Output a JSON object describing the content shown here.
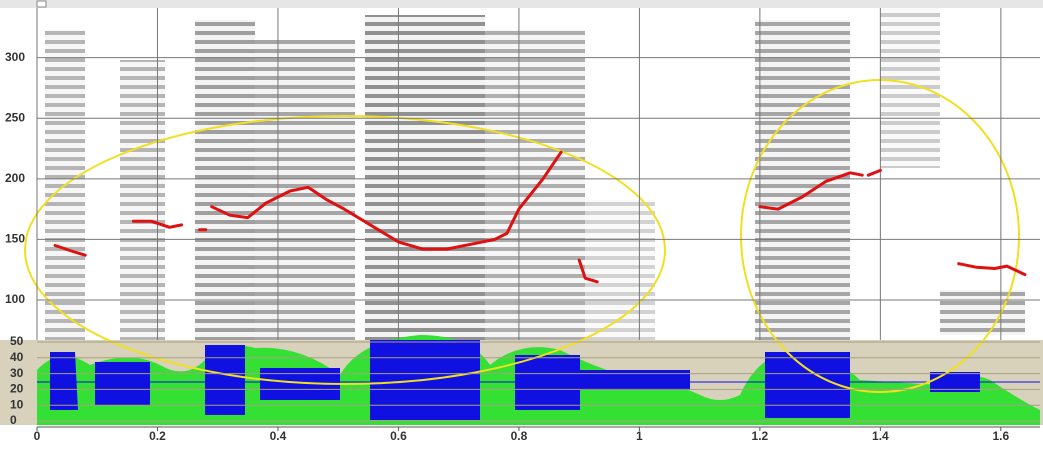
{
  "chart_data": {
    "type": "line",
    "x": [
      0.03,
      0.06,
      0.08,
      null,
      0.16,
      0.19,
      0.22,
      0.24,
      null,
      0.27,
      0.28,
      null,
      0.29,
      0.32,
      0.35,
      0.38,
      0.42,
      0.45,
      0.48,
      0.51,
      0.55,
      0.6,
      0.64,
      0.68,
      0.72,
      0.76,
      0.78,
      0.8,
      0.84,
      0.87,
      null,
      0.9,
      0.91,
      0.93,
      null,
      1.2,
      1.23,
      1.27,
      1.31,
      1.35,
      1.37,
      null,
      1.38,
      1.4,
      null,
      1.53,
      1.56,
      1.59,
      1.61,
      1.64
    ],
    "values": [
      145,
      140,
      137,
      null,
      165,
      165,
      160,
      162,
      null,
      158,
      158,
      null,
      177,
      170,
      168,
      180,
      190,
      193,
      183,
      175,
      163,
      148,
      142,
      142,
      146,
      150,
      155,
      175,
      200,
      222,
      null,
      133,
      118,
      115,
      null,
      177,
      175,
      185,
      198,
      205,
      203,
      null,
      203,
      207,
      null,
      130,
      127,
      126,
      128,
      121
    ],
    "color": "#e01010",
    "xlim": [
      0,
      1.665
    ],
    "xticks": [
      0,
      0.2,
      0.4,
      0.6,
      0.8,
      1,
      1.2,
      1.4,
      1.6
    ],
    "ylim": [
      67,
      341
    ],
    "yticks": [
      100,
      150,
      200,
      250,
      300
    ],
    "y2lim": [
      0,
      50
    ],
    "y2ticks": [
      0,
      10,
      20,
      30,
      40,
      50
    ],
    "grid": true
  }
}
